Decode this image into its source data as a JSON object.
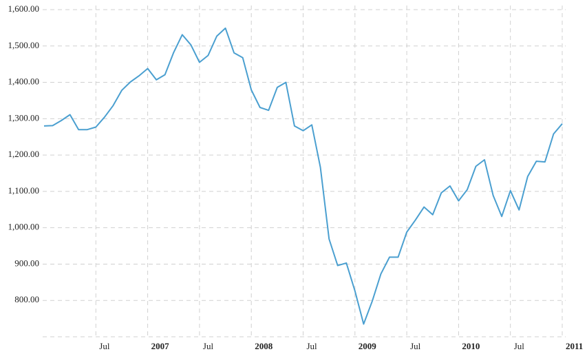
{
  "chart_data": {
    "type": "line",
    "x": [
      "2006-01",
      "2006-02",
      "2006-03",
      "2006-04",
      "2006-05",
      "2006-06",
      "2006-07",
      "2006-08",
      "2006-09",
      "2006-10",
      "2006-11",
      "2006-12",
      "2007-01",
      "2007-02",
      "2007-03",
      "2007-04",
      "2007-05",
      "2007-06",
      "2007-07",
      "2007-08",
      "2007-09",
      "2007-10",
      "2007-11",
      "2007-12",
      "2008-01",
      "2008-02",
      "2008-03",
      "2008-04",
      "2008-05",
      "2008-06",
      "2008-07",
      "2008-08",
      "2008-09",
      "2008-10",
      "2008-11",
      "2008-12",
      "2009-01",
      "2009-02",
      "2009-03",
      "2009-04",
      "2009-05",
      "2009-06",
      "2009-07",
      "2009-08",
      "2009-09",
      "2009-10",
      "2009-11",
      "2009-12",
      "2010-01",
      "2010-02",
      "2010-03",
      "2010-04",
      "2010-05",
      "2010-06",
      "2010-07",
      "2010-08",
      "2010-09",
      "2010-10",
      "2010-11",
      "2010-12",
      "2011-01"
    ],
    "series": [
      {
        "color": "#4a9fd0",
        "values": [
          1280,
          1281,
          1295,
          1311,
          1270,
          1270,
          1277,
          1304,
          1336,
          1378,
          1401,
          1418,
          1438,
          1407,
          1421,
          1482,
          1531,
          1503,
          1455,
          1474,
          1527,
          1549,
          1481,
          1468,
          1379,
          1331,
          1323,
          1386,
          1400,
          1280,
          1267,
          1283,
          1166,
          969,
          896,
          903,
          826,
          735,
          798,
          873,
          919,
          919,
          988,
          1021,
          1057,
          1036,
          1096,
          1115,
          1074,
          1105,
          1169,
          1187,
          1089,
          1031,
          1102,
          1049,
          1141,
          1183,
          1181,
          1258,
          1286
        ]
      }
    ],
    "xlim": [
      "2006-01",
      "2011-01"
    ],
    "xticks": [
      {
        "value": "2006-07",
        "label": "Jul"
      },
      {
        "value": "2007-01",
        "label": "2007"
      },
      {
        "value": "2007-07",
        "label": "Jul"
      },
      {
        "value": "2008-01",
        "label": "2008"
      },
      {
        "value": "2008-07",
        "label": "Jul"
      },
      {
        "value": "2009-01",
        "label": "2009"
      },
      {
        "value": "2009-07",
        "label": "Jul"
      },
      {
        "value": "2010-01",
        "label": "2010"
      },
      {
        "value": "2010-07",
        "label": "Jul"
      },
      {
        "value": "2011-01",
        "label": "2011"
      }
    ],
    "ylim": [
      700,
      1600
    ],
    "yticks": [
      {
        "value": 800,
        "label": "800.00"
      },
      {
        "value": 900,
        "label": "900.00"
      },
      {
        "value": 1000,
        "label": "1,000.00"
      },
      {
        "value": 1100,
        "label": "1,100.00"
      },
      {
        "value": 1200,
        "label": "1,200.00"
      },
      {
        "value": 1300,
        "label": "1,300.00"
      },
      {
        "value": 1400,
        "label": "1,400.00"
      },
      {
        "value": 1500,
        "label": "1,500.00"
      },
      {
        "value": 1600,
        "label": "1,600.00"
      }
    ],
    "grid": true
  }
}
